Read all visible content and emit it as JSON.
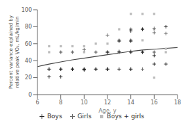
{
  "chart_data": {
    "type": "scatter",
    "xlabel": "Age, y",
    "ylabel": "Percent variance explained by\nrelative peak ṾO₂, mL/kg/min",
    "xlim": [
      6,
      18
    ],
    "ylim": [
      0,
      100
    ],
    "xticks": [
      6,
      8,
      10,
      12,
      14,
      16,
      18
    ],
    "yticks": [
      0,
      20,
      40,
      60,
      80,
      100
    ],
    "legend": "bottom",
    "series": [
      {
        "name": "Boys",
        "type": "scatter",
        "marker": "plus",
        "color": "#222222",
        "x": [
          7,
          7,
          8,
          8,
          9,
          9,
          10,
          10,
          11,
          12,
          12,
          12,
          13,
          13,
          13,
          14,
          14,
          14,
          14,
          15,
          15,
          16,
          16,
          17,
          17
        ],
        "values": [
          30,
          21,
          30,
          21,
          30,
          30,
          30,
          29,
          30,
          50,
          30,
          30,
          63,
          50,
          30,
          75,
          63,
          50,
          30,
          77,
          50,
          46,
          36,
          80,
          36
        ]
      },
      {
        "name": "Girls",
        "type": "scatter",
        "marker": "plus",
        "color": "#666666",
        "x": [
          7,
          8,
          8,
          9,
          9,
          10,
          10,
          11,
          11,
          12,
          12,
          12,
          13,
          13,
          14,
          14,
          14,
          14,
          15,
          15,
          15,
          16,
          16,
          16,
          17
        ],
        "values": [
          30,
          50,
          30,
          50,
          30,
          53,
          30,
          50,
          30,
          70,
          50,
          30,
          64,
          51,
          77,
          64,
          51,
          30,
          77,
          50,
          30,
          78,
          73,
          50,
          72
        ]
      },
      {
        "name": "Boys + girls",
        "type": "scatter",
        "marker": "square",
        "color": "#bbbbbb",
        "x": [
          7,
          7,
          8,
          8,
          8,
          9,
          9,
          9,
          10,
          10,
          10,
          11,
          11,
          11,
          12,
          12,
          13,
          13,
          13,
          14,
          14,
          14,
          14,
          15,
          15,
          15,
          15,
          16,
          16,
          16,
          16,
          17,
          17
        ],
        "values": [
          57,
          50,
          57,
          50,
          30,
          57,
          50,
          30,
          57,
          50,
          30,
          60,
          50,
          30,
          60,
          50,
          77,
          64,
          50,
          95,
          77,
          64,
          50,
          95,
          77,
          64,
          50,
          95,
          77,
          50,
          20,
          54,
          50
        ]
      },
      {
        "type": "line",
        "color": "#444444",
        "x": [
          6.0,
          6.5,
          7.0,
          8.0,
          9.0,
          10.0,
          11.0,
          12.0,
          13.0,
          14.0,
          15.0,
          16.0,
          17.0,
          18.0
        ],
        "values": [
          33.0,
          34.5,
          36.0,
          38.5,
          41.0,
          43.0,
          45.0,
          47.0,
          49.0,
          51.0,
          52.5,
          53.5,
          54.5,
          55.5
        ]
      }
    ]
  }
}
